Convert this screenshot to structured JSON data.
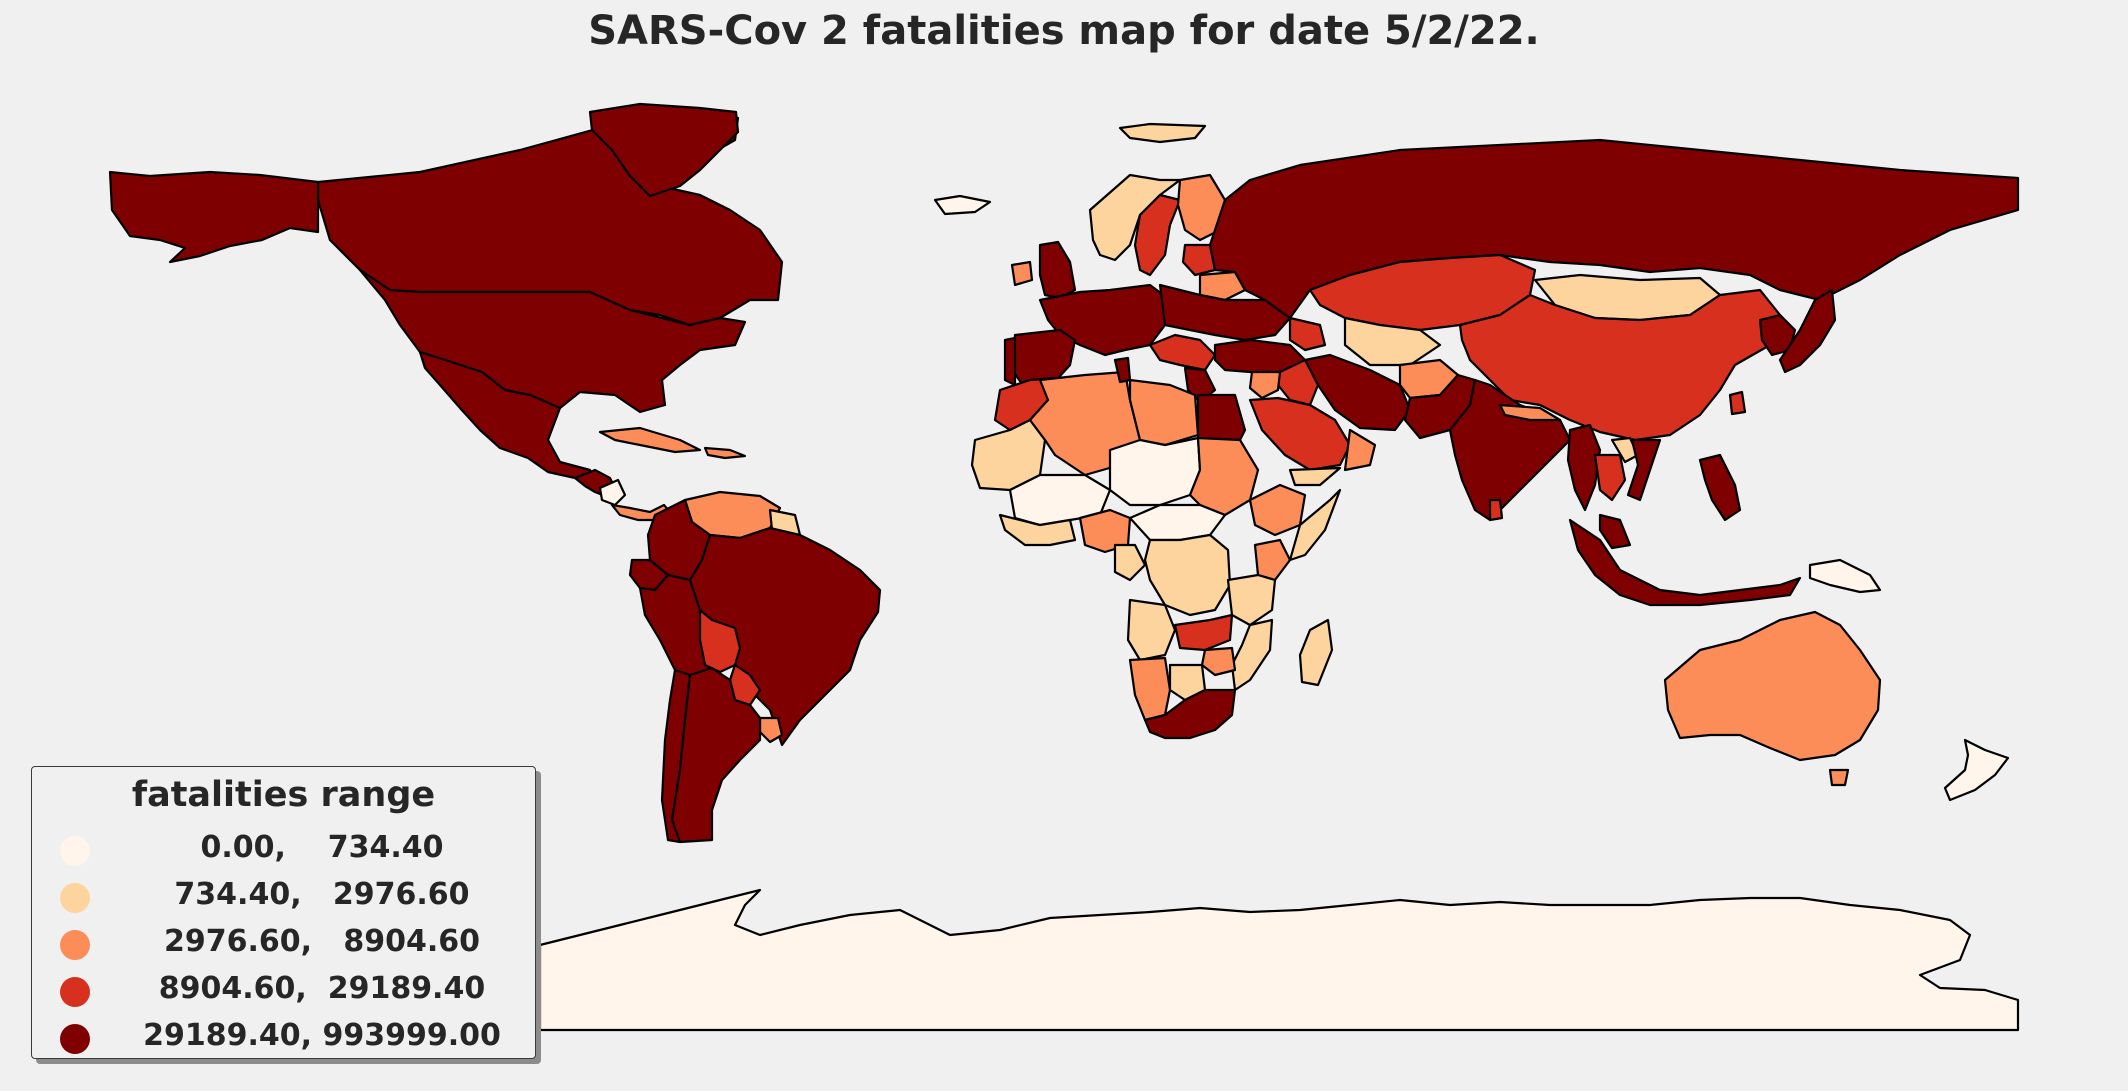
{
  "title": "SARS-Cov 2 fatalities map for date 5/2/22.",
  "legend": {
    "title": "fatalities range",
    "classes": [
      {
        "label": "0.00,    734.40",
        "color": "#fff5eb",
        "min": 0.0,
        "max": 734.4
      },
      {
        "label": "734.40,   2976.60",
        "color": "#fdd49e",
        "min": 734.4,
        "max": 2976.6
      },
      {
        "label": "2976.60,   8904.60",
        "color": "#fc8d59",
        "min": 2976.6,
        "max": 8904.6
      },
      {
        "label": "8904.60,  29189.40",
        "color": "#d7301f",
        "min": 8904.6,
        "max": 29189.4
      },
      {
        "label": "29189.40, 993999.00",
        "color": "#7f0000",
        "min": 29189.4,
        "max": 993999.0
      }
    ]
  },
  "colors": {
    "background": "#f0f0f0",
    "border": "#000000"
  },
  "regions": [
    {
      "name": "Canada",
      "cls": 4
    },
    {
      "name": "Alaska",
      "cls": 4
    },
    {
      "name": "Greenland",
      "cls": 4
    },
    {
      "name": "United States",
      "cls": 4
    },
    {
      "name": "Mexico",
      "cls": 4
    },
    {
      "name": "Central America",
      "cls": 4
    },
    {
      "name": "Nicaragua",
      "cls": 0
    },
    {
      "name": "Costa Rica / Panama",
      "cls": 2
    },
    {
      "name": "Cuba",
      "cls": 2
    },
    {
      "name": "Caribbean",
      "cls": 2
    },
    {
      "name": "Venezuela",
      "cls": 2
    },
    {
      "name": "Guyana / Suriname",
      "cls": 1
    },
    {
      "name": "Colombia",
      "cls": 4
    },
    {
      "name": "Ecuador",
      "cls": 4
    },
    {
      "name": "Peru",
      "cls": 4
    },
    {
      "name": "Brazil",
      "cls": 4
    },
    {
      "name": "Bolivia",
      "cls": 3
    },
    {
      "name": "Paraguay",
      "cls": 3
    },
    {
      "name": "Uruguay",
      "cls": 2
    },
    {
      "name": "Chile",
      "cls": 4
    },
    {
      "name": "Argentina",
      "cls": 4
    },
    {
      "name": "Iceland",
      "cls": 0
    },
    {
      "name": "Svalbard",
      "cls": 1
    },
    {
      "name": "Norway",
      "cls": 1
    },
    {
      "name": "Sweden",
      "cls": 3
    },
    {
      "name": "Finland",
      "cls": 2
    },
    {
      "name": "Ireland",
      "cls": 2
    },
    {
      "name": "United Kingdom",
      "cls": 4
    },
    {
      "name": "Western Europe",
      "cls": 4
    },
    {
      "name": "Baltics",
      "cls": 3
    },
    {
      "name": "Belarus",
      "cls": 2
    },
    {
      "name": "Eastern Europe",
      "cls": 4
    },
    {
      "name": "Balkans",
      "cls": 3
    },
    {
      "name": "Greece",
      "cls": 4
    },
    {
      "name": "Spain",
      "cls": 4
    },
    {
      "name": "Portugal",
      "cls": 4
    },
    {
      "name": "Russia",
      "cls": 4
    },
    {
      "name": "Kazakhstan",
      "cls": 3
    },
    {
      "name": "Mongolia",
      "cls": 1
    },
    {
      "name": "China",
      "cls": 3
    },
    {
      "name": "Turkey",
      "cls": 4
    },
    {
      "name": "Caucasus",
      "cls": 3
    },
    {
      "name": "Iran",
      "cls": 4
    },
    {
      "name": "Iraq",
      "cls": 3
    },
    {
      "name": "Syria / Jordan",
      "cls": 2
    },
    {
      "name": "Saudi Arabia",
      "cls": 3
    },
    {
      "name": "Oman",
      "cls": 2
    },
    {
      "name": "Yemen",
      "cls": 1
    },
    {
      "name": "Turkmenistan / Uzbekistan",
      "cls": 1
    },
    {
      "name": "Afghanistan",
      "cls": 2
    },
    {
      "name": "Pakistan",
      "cls": 4
    },
    {
      "name": "India",
      "cls": 4
    },
    {
      "name": "Nepal",
      "cls": 2
    },
    {
      "name": "Sri Lanka",
      "cls": 3
    },
    {
      "name": "Myanmar",
      "cls": 4
    },
    {
      "name": "Thailand",
      "cls": 3
    },
    {
      "name": "Laos",
      "cls": 1
    },
    {
      "name": "Vietnam",
      "cls": 4
    },
    {
      "name": "Malaysia",
      "cls": 4
    },
    {
      "name": "Indonesia",
      "cls": 4
    },
    {
      "name": "Philippines",
      "cls": 4
    },
    {
      "name": "Papua New Guinea",
      "cls": 0
    },
    {
      "name": "Korea",
      "cls": 4
    },
    {
      "name": "Japan",
      "cls": 4
    },
    {
      "name": "Taiwan",
      "cls": 3
    },
    {
      "name": "Australia",
      "cls": 2
    },
    {
      "name": "Tasmania",
      "cls": 2
    },
    {
      "name": "New Zealand",
      "cls": 0
    },
    {
      "name": "Morocco",
      "cls": 3
    },
    {
      "name": "Western Sahara / Mauritania",
      "cls": 1
    },
    {
      "name": "Algeria",
      "cls": 2
    },
    {
      "name": "Tunisia",
      "cls": 4
    },
    {
      "name": "Libya",
      "cls": 2
    },
    {
      "name": "Egypt",
      "cls": 4
    },
    {
      "name": "Sahel West",
      "cls": 0
    },
    {
      "name": "Niger / Chad",
      "cls": 0
    },
    {
      "name": "Sudan",
      "cls": 2
    },
    {
      "name": "Ethiopia",
      "cls": 2
    },
    {
      "name": "Somalia",
      "cls": 1
    },
    {
      "name": "West Africa Coast",
      "cls": 1
    },
    {
      "name": "Nigeria",
      "cls": 2
    },
    {
      "name": "Central African Republic",
      "cls": 0
    },
    {
      "name": "Cameroon",
      "cls": 1
    },
    {
      "name": "DR Congo",
      "cls": 1
    },
    {
      "name": "Kenya",
      "cls": 2
    },
    {
      "name": "Tanzania",
      "cls": 1
    },
    {
      "name": "Angola",
      "cls": 1
    },
    {
      "name": "Zambia",
      "cls": 3
    },
    {
      "name": "Mozambique",
      "cls": 1
    },
    {
      "name": "Zimbabwe",
      "cls": 2
    },
    {
      "name": "Namibia",
      "cls": 2
    },
    {
      "name": "Botswana",
      "cls": 1
    },
    {
      "name": "South Africa",
      "cls": 4
    },
    {
      "name": "Madagascar",
      "cls": 1
    },
    {
      "name": "Antarctica",
      "cls": 0
    }
  ]
}
